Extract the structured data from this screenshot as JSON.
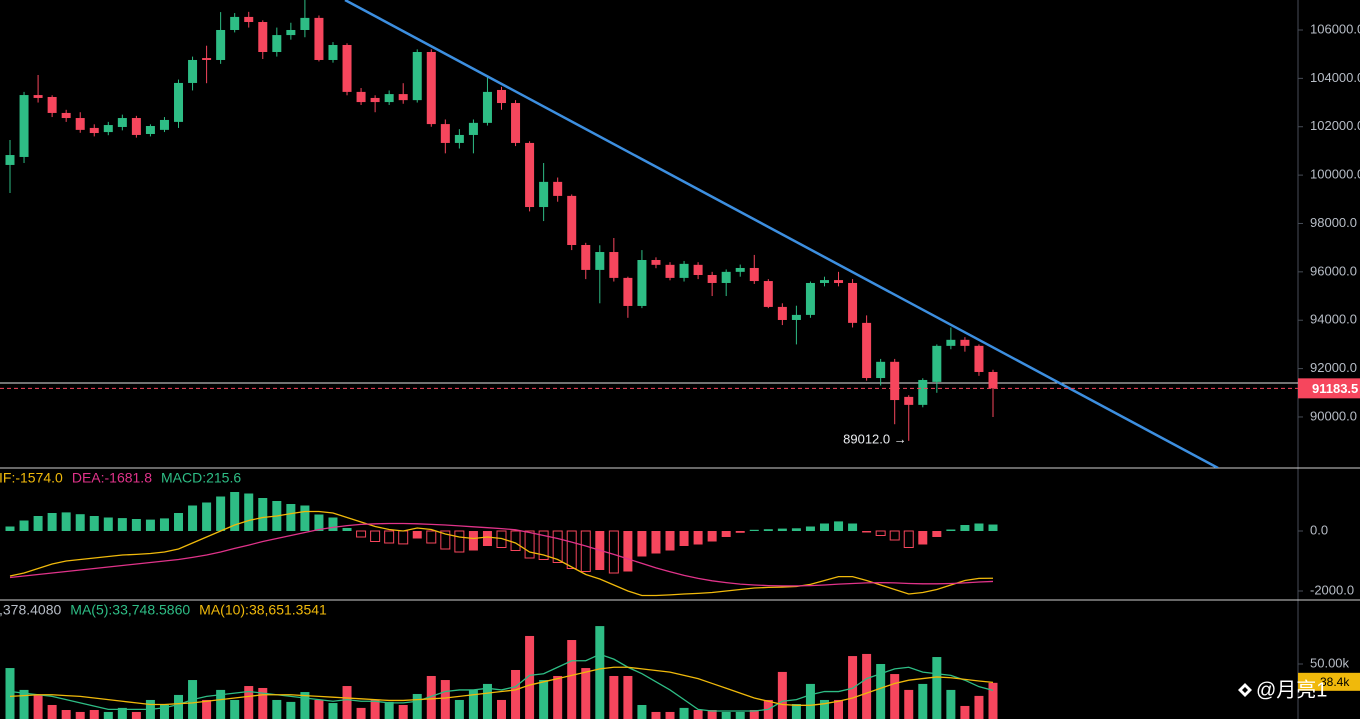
{
  "chart_data": [
    {
      "type": "candlestick",
      "up_color": "#2ebd85",
      "down_color": "#f6465d",
      "open": [
        100420,
        100750,
        103310,
        103230,
        102570,
        102360,
        101950,
        101780,
        101990,
        102360,
        101700,
        101870,
        102200,
        103810,
        104840,
        104760,
        106000,
        106540,
        106330,
        105090,
        105790,
        106000,
        106500,
        104760,
        105380,
        103440,
        103190,
        103020,
        103350,
        103100,
        105090,
        102110,
        101330,
        101660,
        102160,
        103520,
        102980,
        101330,
        98680,
        99720,
        99140,
        97110,
        96080,
        96820,
        95750,
        94590,
        96490,
        96290,
        95750,
        96290,
        95870,
        95540,
        96000,
        96160,
        95620,
        94550,
        94010,
        94220,
        95540,
        95660,
        95540,
        93890,
        91610,
        92280,
        90830,
        90500,
        91450,
        92940,
        93190,
        92940,
        91860
      ],
      "high": [
        101450,
        103440,
        104140,
        103300,
        102700,
        102600,
        102100,
        102200,
        102500,
        102450,
        102100,
        102400,
        103950,
        104900,
        105350,
        106740,
        106700,
        106750,
        106400,
        106100,
        106300,
        107240,
        106600,
        105500,
        105450,
        103600,
        103300,
        103500,
        103800,
        105200,
        105200,
        102300,
        101900,
        102300,
        104100,
        103650,
        103100,
        101400,
        100500,
        99900,
        99200,
        97200,
        97100,
        97400,
        95800,
        96900,
        96600,
        96400,
        96450,
        96400,
        96000,
        96100,
        96300,
        96700,
        95700,
        94700,
        94600,
        95600,
        95800,
        96000,
        95700,
        94200,
        92400,
        92400,
        90900,
        91600,
        93000,
        93700,
        93300,
        93000,
        91950
      ],
      "low": [
        99260,
        100500,
        103000,
        102400,
        102200,
        101750,
        101600,
        101650,
        101850,
        101550,
        101600,
        101780,
        101950,
        103500,
        103800,
        104600,
        105900,
        106100,
        104800,
        104900,
        105600,
        105700,
        104700,
        104650,
        103300,
        102900,
        102600,
        102900,
        102950,
        103000,
        102000,
        100900,
        101100,
        100900,
        102050,
        102700,
        101200,
        98500,
        98100,
        98900,
        96900,
        95700,
        94700,
        95600,
        94100,
        94500,
        96150,
        95650,
        95600,
        95700,
        95000,
        95000,
        95800,
        95500,
        94500,
        93800,
        93000,
        94100,
        95400,
        95400,
        93700,
        91500,
        91300,
        89700,
        89012,
        90400,
        91000,
        92800,
        92700,
        91700,
        90000
      ],
      "close": [
        100830,
        103310,
        103190,
        102570,
        102360,
        101870,
        101740,
        102070,
        102360,
        101660,
        102030,
        102280,
        103810,
        104760,
        104760,
        106000,
        106540,
        106330,
        105090,
        105790,
        106000,
        106500,
        104760,
        105380,
        103440,
        103020,
        103020,
        103350,
        103100,
        105090,
        102110,
        101330,
        101660,
        102160,
        103440,
        102980,
        101330,
        98680,
        99720,
        99140,
        97110,
        96080,
        96820,
        95750,
        94590,
        96490,
        96290,
        95750,
        96330,
        95870,
        95540,
        96000,
        96160,
        95620,
        94550,
        94010,
        94220,
        95540,
        95660,
        95540,
        93890,
        91610,
        92280,
        90700,
        90500,
        91530,
        92940,
        93190,
        92940,
        91860,
        91183.5
      ],
      "ylim": [
        87890,
        107240
      ],
      "yticks": [
        {
          "value": 90000,
          "label": "90000.0"
        },
        {
          "value": 92000,
          "label": "92000.0"
        },
        {
          "value": 94000,
          "label": "94000.0"
        },
        {
          "value": 96000,
          "label": "96000.0"
        },
        {
          "value": 98000,
          "label": "98000.0"
        },
        {
          "value": 100000,
          "label": "100000.0"
        },
        {
          "value": 102000,
          "label": "102000.0"
        },
        {
          "value": 104000,
          "label": "104000.0"
        },
        {
          "value": 106000,
          "label": "106000.0"
        }
      ],
      "annotations": [
        "89012.0 →"
      ]
    },
    {
      "type": "macd",
      "ylim": [
        -2300,
        2100
      ],
      "yticks": [
        {
          "value": 0,
          "label": "0.0"
        },
        {
          "value": -2000,
          "label": "-2000.0"
        }
      ],
      "up_color": "#2ebd85",
      "down_color": "#f6465d",
      "series": [
        {
          "name": "IF:-1574.0",
          "color": "#f0b90b",
          "kind": "line",
          "values": [
            -1500,
            -1400,
            -1250,
            -1100,
            -1000,
            -950,
            -900,
            -850,
            -800,
            -780,
            -750,
            -700,
            -600,
            -400,
            -200,
            0,
            200,
            350,
            450,
            500,
            580,
            650,
            650,
            600,
            450,
            300,
            150,
            50,
            0,
            100,
            50,
            -100,
            -200,
            -250,
            -200,
            -250,
            -400,
            -700,
            -800,
            -950,
            -1200,
            -1450,
            -1600,
            -1800,
            -2000,
            -2150,
            -2150,
            -2130,
            -2100,
            -2080,
            -2050,
            -2000,
            -1950,
            -1900,
            -1880,
            -1870,
            -1850,
            -1780,
            -1650,
            -1520,
            -1520,
            -1650,
            -1800,
            -1950,
            -2100,
            -2050,
            -1950,
            -1800,
            -1650,
            -1580,
            -1574.0
          ]
        },
        {
          "name": "DEA:-1681.8",
          "color": "#e0338a",
          "kind": "line",
          "values": [
            -1550,
            -1500,
            -1450,
            -1400,
            -1350,
            -1300,
            -1250,
            -1200,
            -1150,
            -1100,
            -1050,
            -1000,
            -950,
            -880,
            -800,
            -700,
            -580,
            -470,
            -350,
            -250,
            -150,
            -50,
            50,
            120,
            180,
            220,
            240,
            250,
            250,
            240,
            220,
            200,
            170,
            140,
            110,
            80,
            40,
            -50,
            -150,
            -250,
            -370,
            -500,
            -640,
            -780,
            -930,
            -1080,
            -1230,
            -1360,
            -1480,
            -1580,
            -1660,
            -1720,
            -1770,
            -1800,
            -1820,
            -1830,
            -1830,
            -1820,
            -1800,
            -1770,
            -1750,
            -1730,
            -1720,
            -1730,
            -1750,
            -1760,
            -1760,
            -1750,
            -1730,
            -1700,
            -1681.8
          ]
        },
        {
          "name": "MACD:215.6",
          "color": "#2ebd85",
          "kind": "histogram",
          "values": [
            150,
            350,
            500,
            600,
            620,
            560,
            500,
            450,
            430,
            400,
            380,
            420,
            600,
            850,
            950,
            1150,
            1300,
            1250,
            1100,
            1000,
            900,
            850,
            550,
            450,
            100,
            -200,
            -350,
            -400,
            -430,
            -250,
            -400,
            -600,
            -700,
            -650,
            -500,
            -550,
            -650,
            -900,
            -950,
            -1050,
            -1250,
            -1350,
            -1300,
            -1400,
            -1350,
            -850,
            -750,
            -650,
            -500,
            -450,
            -350,
            -200,
            -60,
            40,
            60,
            80,
            90,
            150,
            250,
            320,
            250,
            -50,
            -150,
            -300,
            -550,
            -450,
            -200,
            50,
            200,
            250,
            215.6
          ]
        }
      ]
    },
    {
      "type": "volume",
      "ylim": [
        16050,
        89500
      ],
      "yticks": [
        {
          "value": 50000,
          "label": "50.00k"
        }
      ],
      "series": [
        {
          "name": ",378.4080",
          "color": "#b7bdc6",
          "kind": "histogram",
          "values": [
            47500,
            34000,
            30900,
            24700,
            21600,
            20400,
            21600,
            20400,
            22900,
            20400,
            27800,
            24700,
            30900,
            40100,
            27800,
            34000,
            27800,
            36400,
            35200,
            27800,
            26600,
            32700,
            27800,
            25900,
            36400,
            22900,
            27800,
            26600,
            24700,
            31500,
            42600,
            40100,
            27800,
            34000,
            37700,
            27800,
            46300,
            67300,
            40100,
            42600,
            64800,
            47500,
            73400,
            42600,
            42600,
            24700,
            20400,
            20400,
            22900,
            21600,
            21600,
            20400,
            20400,
            21600,
            27800,
            45100,
            25300,
            37700,
            27800,
            27800,
            54900,
            56200,
            50000,
            43800,
            34000,
            37700,
            54300,
            34000,
            24100,
            30300,
            38378.408
          ],
          "value_labels_last": "38.4k"
        },
        {
          "name": "MA(5):33,748.5860",
          "color": "#2ebd85",
          "kind": "line",
          "values": [
            33000,
            32000,
            31000,
            30000,
            28000,
            26000,
            24000,
            22000,
            22000,
            22000,
            22000,
            23000,
            25000,
            28000,
            30000,
            31000,
            32000,
            33000,
            32000,
            31000,
            30000,
            29000,
            28000,
            27000,
            28000,
            27000,
            27000,
            26000,
            26000,
            27000,
            30000,
            33000,
            34000,
            34000,
            35000,
            34000,
            36000,
            43000,
            44000,
            48000,
            52000,
            52000,
            56000,
            53000,
            48000,
            44000,
            39000,
            34000,
            28000,
            22000,
            21000,
            21000,
            21000,
            21000,
            22000,
            27000,
            28000,
            31000,
            33000,
            33000,
            35000,
            41000,
            44000,
            47000,
            48000,
            45000,
            44000,
            43000,
            40000,
            36000,
            33748.586
          ]
        },
        {
          "name": "MA(10):38,651.3541",
          "color": "#f0b90b",
          "kind": "line",
          "values": [
            30000,
            30500,
            31000,
            31000,
            30500,
            30000,
            29000,
            28000,
            27000,
            26000,
            25000,
            25000,
            25500,
            26000,
            27000,
            28000,
            29000,
            30000,
            31000,
            31000,
            31000,
            30500,
            30000,
            29500,
            29000,
            28500,
            28000,
            27500,
            27500,
            28000,
            28500,
            29000,
            30000,
            31000,
            32000,
            33000,
            34000,
            37000,
            39000,
            41000,
            43000,
            45000,
            47000,
            48000,
            48000,
            47000,
            46000,
            45000,
            43000,
            41000,
            38000,
            35000,
            32000,
            29000,
            27000,
            25000,
            24500,
            24500,
            25500,
            27000,
            29000,
            32000,
            35000,
            38000,
            40000,
            41000,
            42000,
            41500,
            40500,
            39500,
            38651.3541
          ]
        }
      ]
    }
  ],
  "watermark": "@月亮1"
}
